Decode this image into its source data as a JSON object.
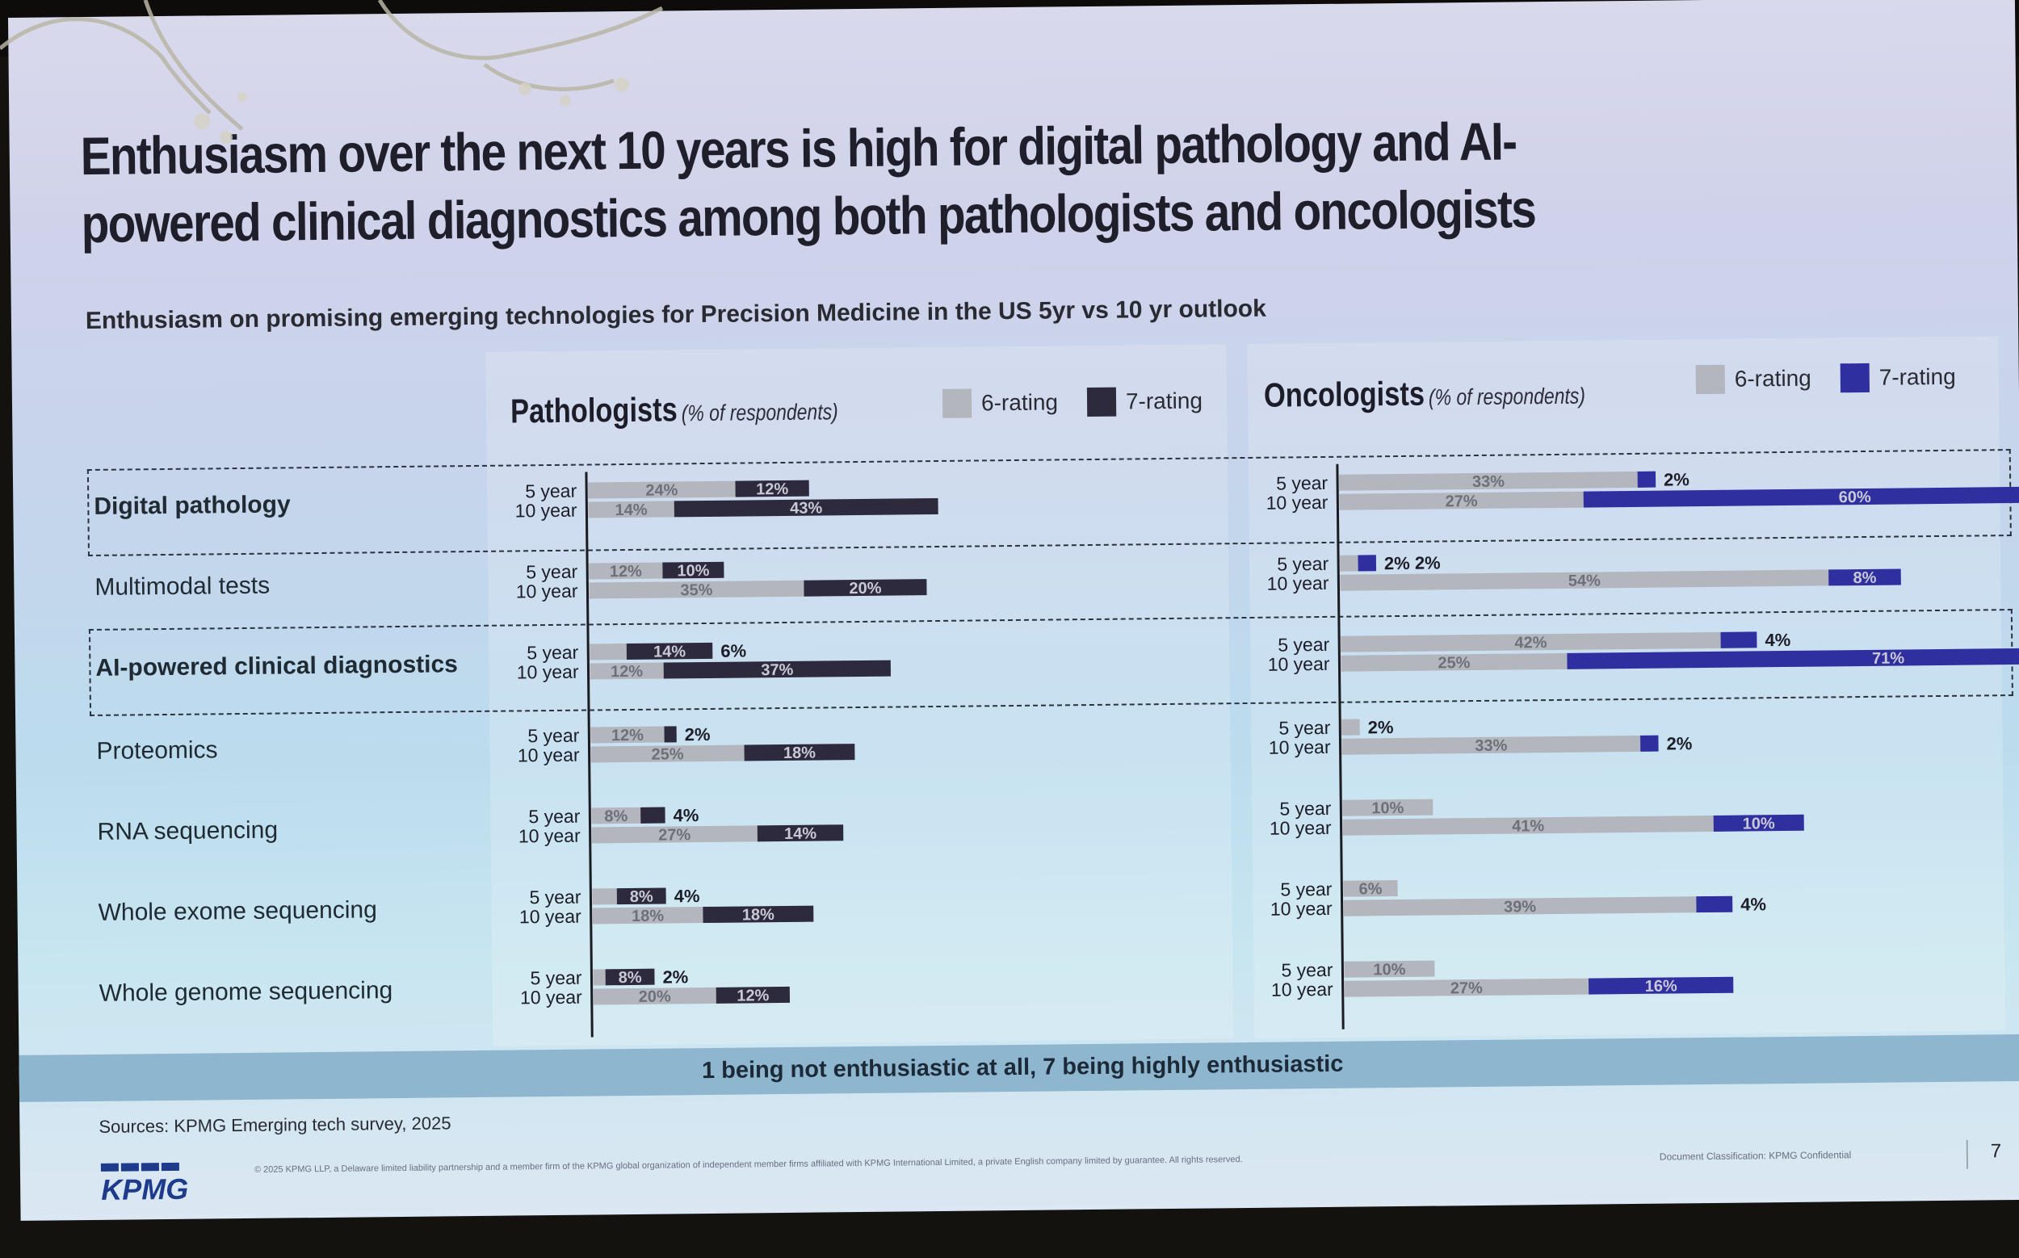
{
  "slide": {
    "title": "Enthusiasm over the next 10 years is high for digital pathology and AI-powered clinical diagnostics among both pathologists and oncologists",
    "subtitle": "Enthusiasm on promising emerging technologies for Precision Medicine in the US 5yr vs 10 yr outlook",
    "scale_note": "1 being not enthusiastic at all, 7 being highly enthusiastic",
    "source": "Sources: KPMG Emerging tech survey, 2025",
    "logo": "KPMG",
    "legal": "© 2025 KPMG LLP, a Delaware limited liability partnership and a member firm of the KPMG global organization of independent member firms affiliated with KPMG International Limited, a private English company limited by guarantee. All rights reserved.",
    "classification": "Document Classification: KPMG Confidential",
    "page_number": "7"
  },
  "colors": {
    "six_rating": "#b3b7bd",
    "seven_rating_pathologists": "#2d2a3e",
    "seven_rating_oncologists": "#2f2fa0"
  },
  "chart_data": [
    {
      "type": "bar",
      "orientation": "horizontal",
      "stacked": true,
      "panel_title": "Pathologists",
      "panel_unit": "(% of respondents)",
      "legend": [
        "6-rating",
        "7-rating"
      ],
      "categories": [
        "Digital pathology",
        "Multimodal tests",
        "AI-powered clinical diagnostics",
        "Proteomics",
        "RNA sequencing",
        "Whole exome sequencing",
        "Whole genome sequencing"
      ],
      "highlighted": [
        "Digital pathology",
        "AI-powered clinical diagnostics"
      ],
      "periods": [
        "5 year",
        "10 year"
      ],
      "series": [
        {
          "name": "6-rating",
          "period": "5 year",
          "values": [
            24,
            12,
            6,
            12,
            8,
            4,
            2
          ]
        },
        {
          "name": "7-rating",
          "period": "5 year",
          "values": [
            12,
            10,
            14,
            2,
            4,
            8,
            8
          ]
        },
        {
          "name": "6-rating",
          "period": "10 year",
          "values": [
            14,
            35,
            12,
            25,
            27,
            18,
            20
          ]
        },
        {
          "name": "7-rating",
          "period": "10 year",
          "values": [
            43,
            20,
            37,
            18,
            14,
            18,
            12
          ]
        }
      ]
    },
    {
      "type": "bar",
      "orientation": "horizontal",
      "stacked": true,
      "panel_title": "Oncologists",
      "panel_unit": "(% of respondents)",
      "legend": [
        "6-rating",
        "7-rating"
      ],
      "categories": [
        "Digital pathology",
        "Multimodal tests",
        "AI-powered clinical diagnostics",
        "Proteomics",
        "RNA sequencing",
        "Whole exome sequencing",
        "Whole genome sequencing"
      ],
      "highlighted": [
        "Digital pathology",
        "AI-powered clinical diagnostics"
      ],
      "periods": [
        "5 year",
        "10 year"
      ],
      "series": [
        {
          "name": "6-rating",
          "period": "5 year",
          "values": [
            33,
            2,
            42,
            2,
            10,
            6,
            10
          ]
        },
        {
          "name": "7-rating",
          "period": "5 year",
          "values": [
            2,
            2,
            4,
            0,
            0,
            0,
            0
          ]
        },
        {
          "name": "6-rating",
          "period": "10 year",
          "values": [
            27,
            54,
            25,
            33,
            41,
            39,
            27
          ]
        },
        {
          "name": "7-rating",
          "period": "10 year",
          "values": [
            60,
            8,
            71,
            2,
            10,
            4,
            16
          ]
        }
      ]
    }
  ]
}
